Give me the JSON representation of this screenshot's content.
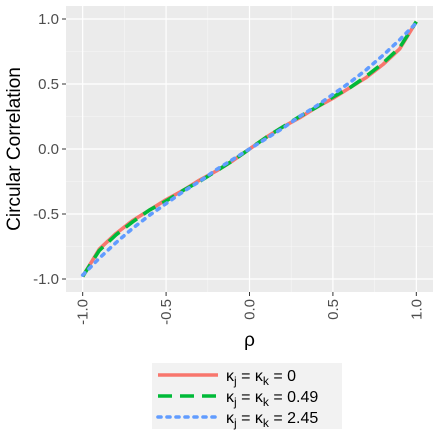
{
  "chart_data": {
    "type": "line",
    "title": "",
    "xlabel": "ρ",
    "ylabel": "Circular Correlation",
    "xlim": [
      -1.0,
      1.0
    ],
    "ylim": [
      -1.0,
      1.0
    ],
    "x_ticks": [
      "-1.0",
      "-0.5",
      "0.0",
      "0.5",
      "1.0"
    ],
    "y_ticks": [
      "-1.0",
      "-0.5",
      "0.0",
      "0.5",
      "1.0"
    ],
    "grid": true,
    "legend_position": "bottom",
    "x": [
      -1.0,
      -0.9,
      -0.8,
      -0.7,
      -0.6,
      -0.5,
      -0.4,
      -0.3,
      -0.2,
      -0.1,
      0.0,
      0.1,
      0.2,
      0.3,
      0.4,
      0.5,
      0.6,
      0.7,
      0.8,
      0.9,
      1.0
    ],
    "series": [
      {
        "name": "κj =  κk = 0",
        "color": "#F8766D",
        "dash": "solid",
        "values": [
          -0.98,
          -0.77,
          -0.65,
          -0.55,
          -0.47,
          -0.39,
          -0.32,
          -0.24,
          -0.17,
          -0.09,
          0.0,
          0.09,
          0.17,
          0.24,
          0.32,
          0.39,
          0.47,
          0.55,
          0.65,
          0.77,
          0.98
        ]
      },
      {
        "name": "κj =  κk = 0.49",
        "color": "#00BA38",
        "dash": "dashed",
        "values": [
          -0.98,
          -0.78,
          -0.66,
          -0.56,
          -0.47,
          -0.4,
          -0.32,
          -0.25,
          -0.17,
          -0.09,
          0.0,
          0.09,
          0.17,
          0.25,
          0.32,
          0.4,
          0.47,
          0.56,
          0.66,
          0.78,
          0.98
        ]
      },
      {
        "name": "κj =  κk = 2.45",
        "color": "#619CFF",
        "dash": "dotted",
        "values": [
          -0.97,
          -0.84,
          -0.72,
          -0.61,
          -0.51,
          -0.42,
          -0.33,
          -0.25,
          -0.16,
          -0.08,
          0.0,
          0.08,
          0.16,
          0.25,
          0.33,
          0.42,
          0.51,
          0.61,
          0.72,
          0.84,
          0.97
        ]
      }
    ],
    "legend": {
      "entries": [
        {
          "prefix": "κ",
          "sub1": "j",
          "mid": " =  κ",
          "sub2": "k",
          "suffix": " = 0"
        },
        {
          "prefix": "κ",
          "sub1": "j",
          "mid": " =  κ",
          "sub2": "k",
          "suffix": " = 0.49"
        },
        {
          "prefix": "κ",
          "sub1": "j",
          "mid": " =  κ",
          "sub2": "k",
          "suffix": " = 2.45"
        }
      ]
    },
    "colors": {
      "panel_bg": "#EBEBEB",
      "grid_major": "#FFFFFF",
      "legend_bg": "#F2F2F2"
    }
  }
}
